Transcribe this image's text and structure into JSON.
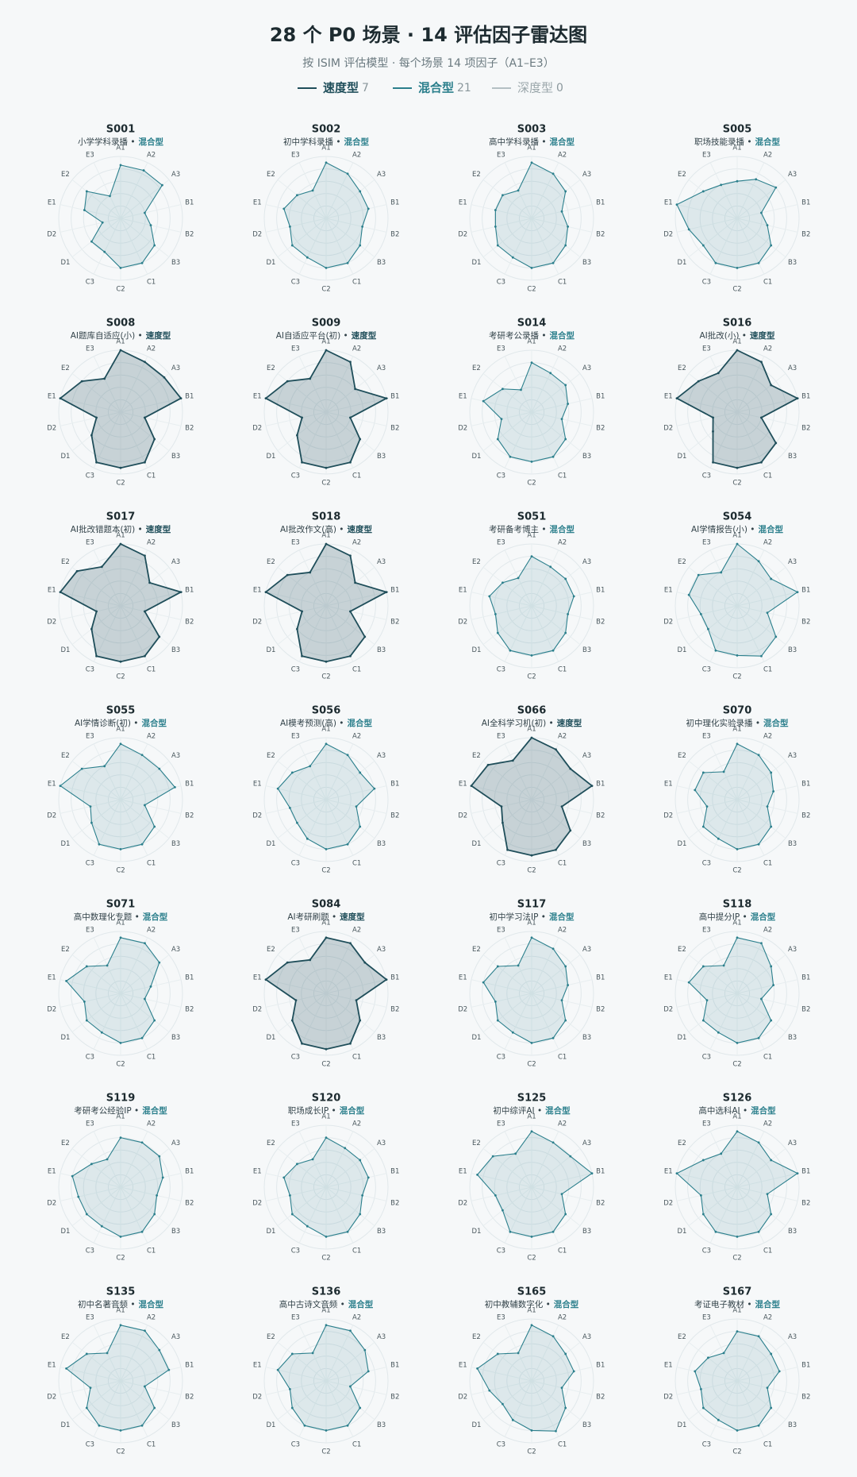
{
  "header": {
    "title": "28 个 P0 场景 · 14 评估因子雷达图",
    "subtitle": "按 ISIM 评估模型 · 每个场景 14 项因子（A1–E3）"
  },
  "legend": [
    {
      "name": "速度型",
      "count": 7,
      "color": "#1f4e5a"
    },
    {
      "name": "混合型",
      "count": 21,
      "color": "#2b7f8c"
    },
    {
      "name": "深度型",
      "count": 0,
      "color": "#b4c0c4"
    }
  ],
  "chart_data": [
    {
      "type": "radar",
      "title": "S001",
      "subtitle": "小学学科录播 •",
      "tag": "混合型",
      "color": "#2b7f8c",
      "rlim": [
        0,
        5
      ],
      "rticks": [
        1,
        2,
        3,
        4,
        5
      ],
      "categories": [
        "A1",
        "A2",
        "A3",
        "B1",
        "B2",
        "B3",
        "C1",
        "C2",
        "C3",
        "D1",
        "D2",
        "E1",
        "E2",
        "E3"
      ],
      "values": [
        4.3,
        4.3,
        4.3,
        2,
        2.5,
        3.5,
        4,
        4,
        3,
        3,
        1.5,
        3,
        3.5,
        2
      ]
    },
    {
      "type": "radar",
      "title": "S002",
      "subtitle": "初中学科录播 •",
      "tag": "混合型",
      "color": "#2b7f8c",
      "rlim": [
        0,
        5
      ],
      "rticks": [
        1,
        2,
        3,
        4,
        5
      ],
      "categories": [
        "A1",
        "A2",
        "A3",
        "B1",
        "B2",
        "B3",
        "C1",
        "C2",
        "C3",
        "D1",
        "D2",
        "E1",
        "E2",
        "E3"
      ],
      "values": [
        4.5,
        4,
        3.5,
        3.5,
        3,
        3.5,
        4,
        4,
        3.5,
        3.5,
        3,
        3.5,
        3,
        2.5
      ]
    },
    {
      "type": "radar",
      "title": "S003",
      "subtitle": "高中学科录播 •",
      "tag": "混合型",
      "color": "#2b7f8c",
      "rlim": [
        0,
        5
      ],
      "rticks": [
        1,
        2,
        3,
        4,
        5
      ],
      "categories": [
        "A1",
        "A2",
        "A3",
        "B1",
        "B2",
        "B3",
        "C1",
        "C2",
        "C3",
        "D1",
        "D2",
        "E1",
        "E2",
        "E3"
      ],
      "values": [
        4.5,
        4,
        3.5,
        2.5,
        3,
        3.5,
        4,
        4,
        3.5,
        3.5,
        3,
        3,
        3,
        2.5
      ]
    },
    {
      "type": "radar",
      "title": "S005",
      "subtitle": "职场技能录播 •",
      "tag": "混合型",
      "color": "#2b7f8c",
      "rlim": [
        0,
        5
      ],
      "rticks": [
        1,
        2,
        3,
        4,
        5
      ],
      "categories": [
        "A1",
        "A2",
        "A3",
        "B1",
        "B2",
        "B3",
        "C1",
        "C2",
        "C3",
        "D1",
        "D2",
        "E1",
        "E2",
        "E3"
      ],
      "values": [
        3,
        3.5,
        4,
        2,
        2.5,
        3.5,
        4,
        4,
        4,
        3.5,
        4,
        5,
        3.5,
        3
      ]
    },
    {
      "type": "radar",
      "title": "S008",
      "subtitle": "AI题库自适应(小) •",
      "tag": "速度型",
      "color": "#1f4e5a",
      "rlim": [
        0,
        5
      ],
      "rticks": [
        1,
        2,
        3,
        4,
        5
      ],
      "categories": [
        "A1",
        "A2",
        "A3",
        "B1",
        "B2",
        "B3",
        "C1",
        "C2",
        "C3",
        "D1",
        "D2",
        "E1",
        "E2",
        "E3"
      ],
      "values": [
        5,
        4.5,
        4.5,
        5,
        2,
        3.5,
        4.5,
        4.5,
        4.5,
        3,
        2,
        5,
        4,
        3
      ]
    },
    {
      "type": "radar",
      "title": "S009",
      "subtitle": "AI自适应平台(初) •",
      "tag": "速度型",
      "color": "#1f4e5a",
      "rlim": [
        0,
        5
      ],
      "rticks": [
        1,
        2,
        3,
        4,
        5
      ],
      "categories": [
        "A1",
        "A2",
        "A3",
        "B1",
        "B2",
        "B3",
        "C1",
        "C2",
        "C3",
        "D1",
        "D2",
        "E1",
        "E2",
        "E3"
      ],
      "values": [
        5,
        4.5,
        3,
        5,
        2,
        3.5,
        4.5,
        4.5,
        4.5,
        3,
        2,
        5,
        4,
        3
      ]
    },
    {
      "type": "radar",
      "title": "S014",
      "subtitle": "考研考公录播 •",
      "tag": "混合型",
      "color": "#2b7f8c",
      "rlim": [
        0,
        5
      ],
      "rticks": [
        1,
        2,
        3,
        4,
        5
      ],
      "categories": [
        "A1",
        "A2",
        "A3",
        "B1",
        "B2",
        "B3",
        "C1",
        "C2",
        "C3",
        "D1",
        "D2",
        "E1",
        "E2",
        "E3"
      ],
      "values": [
        4,
        3.5,
        3.5,
        3,
        2.5,
        3.5,
        4,
        4,
        4,
        3.5,
        2.5,
        4,
        3,
        2
      ]
    },
    {
      "type": "radar",
      "title": "S016",
      "subtitle": "AI批改(小) •",
      "tag": "速度型",
      "color": "#1f4e5a",
      "rlim": [
        0,
        5
      ],
      "rticks": [
        1,
        2,
        3,
        4,
        5
      ],
      "categories": [
        "A1",
        "A2",
        "A3",
        "B1",
        "B2",
        "B3",
        "C1",
        "C2",
        "C3",
        "D1",
        "D2",
        "E1",
        "E2",
        "E3"
      ],
      "values": [
        5,
        4.5,
        3.5,
        5,
        2,
        4,
        4.5,
        4.5,
        4.5,
        2.5,
        2,
        5,
        4,
        3.5
      ]
    },
    {
      "type": "radar",
      "title": "S017",
      "subtitle": "AI批改错题本(初) •",
      "tag": "速度型",
      "color": "#1f4e5a",
      "rlim": [
        0,
        5
      ],
      "rticks": [
        1,
        2,
        3,
        4,
        5
      ],
      "categories": [
        "A1",
        "A2",
        "A3",
        "B1",
        "B2",
        "B3",
        "C1",
        "C2",
        "C3",
        "D1",
        "D2",
        "E1",
        "E2",
        "E3"
      ],
      "values": [
        5,
        4.5,
        3,
        5,
        2,
        4,
        4.5,
        4.5,
        4.5,
        3,
        2,
        5,
        4.5,
        3.5
      ]
    },
    {
      "type": "radar",
      "title": "S018",
      "subtitle": "AI批改作文(高) •",
      "tag": "速度型",
      "color": "#1f4e5a",
      "rlim": [
        0,
        5
      ],
      "rticks": [
        1,
        2,
        3,
        4,
        5
      ],
      "categories": [
        "A1",
        "A2",
        "A3",
        "B1",
        "B2",
        "B3",
        "C1",
        "C2",
        "C3",
        "D1",
        "D2",
        "E1",
        "E2",
        "E3"
      ],
      "values": [
        5,
        4.5,
        3,
        5,
        2,
        4,
        4.5,
        4.5,
        4.5,
        3,
        2,
        5,
        4,
        3
      ]
    },
    {
      "type": "radar",
      "title": "S051",
      "subtitle": "考研备考博主 •",
      "tag": "混合型",
      "color": "#2b7f8c",
      "rlim": [
        0,
        5
      ],
      "rticks": [
        1,
        2,
        3,
        4,
        5
      ],
      "categories": [
        "A1",
        "A2",
        "A3",
        "B1",
        "B2",
        "B3",
        "C1",
        "C2",
        "C3",
        "D1",
        "D2",
        "E1",
        "E2",
        "E3"
      ],
      "values": [
        4,
        3.5,
        3.5,
        3.5,
        3,
        3.5,
        4,
        4,
        4,
        3.5,
        3,
        3.5,
        3,
        2.5
      ]
    },
    {
      "type": "radar",
      "title": "S054",
      "subtitle": "AI学情报告(小) •",
      "tag": "混合型",
      "color": "#2b7f8c",
      "rlim": [
        0,
        5
      ],
      "rticks": [
        1,
        2,
        3,
        4,
        5
      ],
      "categories": [
        "A1",
        "A2",
        "A3",
        "B1",
        "B2",
        "B3",
        "C1",
        "C2",
        "C3",
        "D1",
        "D2",
        "E1",
        "E2",
        "E3"
      ],
      "values": [
        5,
        4,
        3.5,
        5,
        2.5,
        4,
        4.5,
        4,
        4,
        3,
        3,
        4,
        4,
        3
      ]
    },
    {
      "type": "radar",
      "title": "S055",
      "subtitle": "AI学情诊断(初) •",
      "tag": "混合型",
      "color": "#2b7f8c",
      "rlim": [
        0,
        5
      ],
      "rticks": [
        1,
        2,
        3,
        4,
        5
      ],
      "categories": [
        "A1",
        "A2",
        "A3",
        "B1",
        "B2",
        "B3",
        "C1",
        "C2",
        "C3",
        "D1",
        "D2",
        "E1",
        "E2",
        "E3"
      ],
      "values": [
        4.5,
        4,
        4,
        4.5,
        2,
        3.5,
        4,
        4,
        4,
        3,
        2.5,
        5,
        4,
        3
      ]
    },
    {
      "type": "radar",
      "title": "S056",
      "subtitle": "AI模考预测(高) •",
      "tag": "混合型",
      "color": "#2b7f8c",
      "rlim": [
        0,
        5
      ],
      "rticks": [
        1,
        2,
        3,
        4,
        5
      ],
      "categories": [
        "A1",
        "A2",
        "A3",
        "B1",
        "B2",
        "B3",
        "C1",
        "C2",
        "C3",
        "D1",
        "D2",
        "E1",
        "E2",
        "E3"
      ],
      "values": [
        4.5,
        4,
        3.5,
        4,
        2.5,
        3.5,
        4,
        4,
        3.5,
        3,
        3,
        4,
        3.5,
        3
      ]
    },
    {
      "type": "radar",
      "title": "S066",
      "subtitle": "AI全科学习机(初) •",
      "tag": "速度型",
      "color": "#1f4e5a",
      "rlim": [
        0,
        5
      ],
      "rticks": [
        1,
        2,
        3,
        4,
        5
      ],
      "categories": [
        "A1",
        "A2",
        "A3",
        "B1",
        "B2",
        "B3",
        "C1",
        "C2",
        "C3",
        "D1",
        "D2",
        "E1",
        "E2",
        "E3"
      ],
      "values": [
        5,
        4.5,
        4,
        5,
        2.5,
        4,
        4.5,
        4.5,
        4.5,
        3,
        2.5,
        5,
        4.5,
        3.5
      ]
    },
    {
      "type": "radar",
      "title": "S070",
      "subtitle": "初中理化实验录播 •",
      "tag": "混合型",
      "color": "#2b7f8c",
      "rlim": [
        0,
        5
      ],
      "rticks": [
        1,
        2,
        3,
        4,
        5
      ],
      "categories": [
        "A1",
        "A2",
        "A3",
        "B1",
        "B2",
        "B3",
        "C1",
        "C2",
        "C3",
        "D1",
        "D2",
        "E1",
        "E2",
        "E3"
      ],
      "values": [
        4.5,
        4,
        3.5,
        3,
        2.5,
        3.5,
        4,
        4,
        3.5,
        3.5,
        2.5,
        3.5,
        3.5,
        2.5
      ]
    },
    {
      "type": "radar",
      "title": "S071",
      "subtitle": "高中数理化专题 •",
      "tag": "混合型",
      "color": "#2b7f8c",
      "rlim": [
        0,
        5
      ],
      "rticks": [
        1,
        2,
        3,
        4,
        5
      ],
      "categories": [
        "A1",
        "A2",
        "A3",
        "B1",
        "B2",
        "B3",
        "C1",
        "C2",
        "C3",
        "D1",
        "D2",
        "E1",
        "E2",
        "E3"
      ],
      "values": [
        4.5,
        4.5,
        4,
        2.5,
        2,
        3.5,
        4,
        4,
        3.5,
        3.5,
        3,
        4.5,
        3.5,
        2.5
      ]
    },
    {
      "type": "radar",
      "title": "S084",
      "subtitle": "AI考研刷题 •",
      "tag": "速度型",
      "color": "#1f4e5a",
      "rlim": [
        0,
        5
      ],
      "rticks": [
        1,
        2,
        3,
        4,
        5
      ],
      "categories": [
        "A1",
        "A2",
        "A3",
        "B1",
        "B2",
        "B3",
        "C1",
        "C2",
        "C3",
        "D1",
        "D2",
        "E1",
        "E2",
        "E3"
      ],
      "values": [
        4.5,
        4.5,
        4,
        5,
        2.5,
        3.5,
        4.5,
        4.5,
        4.5,
        3.5,
        2.5,
        5,
        4,
        3
      ]
    },
    {
      "type": "radar",
      "title": "S117",
      "subtitle": "初中学习法IP •",
      "tag": "混合型",
      "color": "#2b7f8c",
      "rlim": [
        0,
        5
      ],
      "rticks": [
        1,
        2,
        3,
        4,
        5
      ],
      "categories": [
        "A1",
        "A2",
        "A3",
        "B1",
        "B2",
        "B3",
        "C1",
        "C2",
        "C3",
        "D1",
        "D2",
        "E1",
        "E2",
        "E3"
      ],
      "values": [
        4.5,
        4,
        3.5,
        3,
        2.5,
        3.5,
        4,
        4,
        3.5,
        3.5,
        3,
        4,
        3.5,
        2.5
      ]
    },
    {
      "type": "radar",
      "title": "S118",
      "subtitle": "高中提分IP •",
      "tag": "混合型",
      "color": "#2b7f8c",
      "rlim": [
        0,
        5
      ],
      "rticks": [
        1,
        2,
        3,
        4,
        5
      ],
      "categories": [
        "A1",
        "A2",
        "A3",
        "B1",
        "B2",
        "B3",
        "C1",
        "C2",
        "C3",
        "D1",
        "D2",
        "E1",
        "E2",
        "E3"
      ],
      "values": [
        4.5,
        4.5,
        3.5,
        3,
        2,
        3.5,
        4,
        4,
        3.5,
        3.5,
        2.5,
        4,
        3.5,
        2.5
      ]
    },
    {
      "type": "radar",
      "title": "S119",
      "subtitle": "考研考公经验IP •",
      "tag": "混合型",
      "color": "#2b7f8c",
      "rlim": [
        0,
        5
      ],
      "rticks": [
        1,
        2,
        3,
        4,
        5
      ],
      "categories": [
        "A1",
        "A2",
        "A3",
        "B1",
        "B2",
        "B3",
        "C1",
        "C2",
        "C3",
        "D1",
        "D2",
        "E1",
        "E2",
        "E3"
      ],
      "values": [
        4,
        4,
        4,
        3.5,
        3,
        3.5,
        4,
        4,
        3.5,
        3.5,
        3.5,
        4,
        3,
        2.5
      ]
    },
    {
      "type": "radar",
      "title": "S120",
      "subtitle": "职场成长IP •",
      "tag": "混合型",
      "color": "#2b7f8c",
      "rlim": [
        0,
        5
      ],
      "rticks": [
        1,
        2,
        3,
        4,
        5
      ],
      "categories": [
        "A1",
        "A2",
        "A3",
        "B1",
        "B2",
        "B3",
        "C1",
        "C2",
        "C3",
        "D1",
        "D2",
        "E1",
        "E2",
        "E3"
      ],
      "values": [
        4,
        3.5,
        3.5,
        3.5,
        3,
        3.5,
        4,
        4,
        3.5,
        3.5,
        3,
        3.5,
        3,
        2.5
      ]
    },
    {
      "type": "radar",
      "title": "S125",
      "subtitle": "初中综评AI •",
      "tag": "混合型",
      "color": "#2b7f8c",
      "rlim": [
        0,
        5
      ],
      "rticks": [
        1,
        2,
        3,
        4,
        5
      ],
      "categories": [
        "A1",
        "A2",
        "A3",
        "B1",
        "B2",
        "B3",
        "C1",
        "C2",
        "C3",
        "D1",
        "D2",
        "E1",
        "E2",
        "E3"
      ],
      "values": [
        4.5,
        4,
        4,
        5,
        2.5,
        3.5,
        4,
        4,
        4,
        3,
        3,
        4.5,
        4,
        3
      ]
    },
    {
      "type": "radar",
      "title": "S126",
      "subtitle": "高中选科AI •",
      "tag": "混合型",
      "color": "#2b7f8c",
      "rlim": [
        0,
        5
      ],
      "rticks": [
        1,
        2,
        3,
        4,
        5
      ],
      "categories": [
        "A1",
        "A2",
        "A3",
        "B1",
        "B2",
        "B3",
        "C1",
        "C2",
        "C3",
        "D1",
        "D2",
        "E1",
        "E2",
        "E3"
      ],
      "values": [
        4.5,
        4,
        3.5,
        5,
        2.5,
        3.5,
        4,
        4,
        4,
        3.5,
        3,
        5,
        3.5,
        3
      ]
    },
    {
      "type": "radar",
      "title": "S135",
      "subtitle": "初中名著音频 •",
      "tag": "混合型",
      "color": "#2b7f8c",
      "rlim": [
        0,
        5
      ],
      "rticks": [
        1,
        2,
        3,
        4,
        5
      ],
      "categories": [
        "A1",
        "A2",
        "A3",
        "B1",
        "B2",
        "B3",
        "C1",
        "C2",
        "C3",
        "D1",
        "D2",
        "E1",
        "E2",
        "E3"
      ],
      "values": [
        4.5,
        4.5,
        4,
        4,
        2,
        3.5,
        4,
        4,
        4,
        3.5,
        2.5,
        4.5,
        3.5,
        2.5
      ]
    },
    {
      "type": "radar",
      "title": "S136",
      "subtitle": "高中古诗文音频 •",
      "tag": "混合型",
      "color": "#2b7f8c",
      "rlim": [
        0,
        5
      ],
      "rticks": [
        1,
        2,
        3,
        4,
        5
      ],
      "categories": [
        "A1",
        "A2",
        "A3",
        "B1",
        "B2",
        "B3",
        "C1",
        "C2",
        "C3",
        "D1",
        "D2",
        "E1",
        "E2",
        "E3"
      ],
      "values": [
        4.5,
        4.5,
        4,
        3.5,
        2,
        3.5,
        4,
        4,
        4,
        3.5,
        3,
        4,
        3.5,
        2.5
      ]
    },
    {
      "type": "radar",
      "title": "S165",
      "subtitle": "初中教辅数字化 •",
      "tag": "混合型",
      "color": "#2b7f8c",
      "rlim": [
        0,
        5
      ],
      "rticks": [
        1,
        2,
        3,
        4,
        5
      ],
      "categories": [
        "A1",
        "A2",
        "A3",
        "B1",
        "B2",
        "B3",
        "C1",
        "C2",
        "C3",
        "D1",
        "D2",
        "E1",
        "E2",
        "E3"
      ],
      "values": [
        4.5,
        4,
        3.5,
        3.5,
        2.5,
        3.5,
        4.5,
        4,
        3.5,
        3,
        3.5,
        4.5,
        3.5,
        2.5
      ]
    },
    {
      "type": "radar",
      "title": "S167",
      "subtitle": "考证电子教材 •",
      "tag": "混合型",
      "color": "#2b7f8c",
      "rlim": [
        0,
        5
      ],
      "rticks": [
        1,
        2,
        3,
        4,
        5
      ],
      "categories": [
        "A1",
        "A2",
        "A3",
        "B1",
        "B2",
        "B3",
        "C1",
        "C2",
        "C3",
        "D1",
        "D2",
        "E1",
        "E2",
        "E3"
      ],
      "values": [
        4,
        4,
        3.5,
        3.5,
        2.5,
        3.5,
        4,
        4,
        3.5,
        3.5,
        3,
        3.5,
        3,
        2.5
      ]
    }
  ]
}
